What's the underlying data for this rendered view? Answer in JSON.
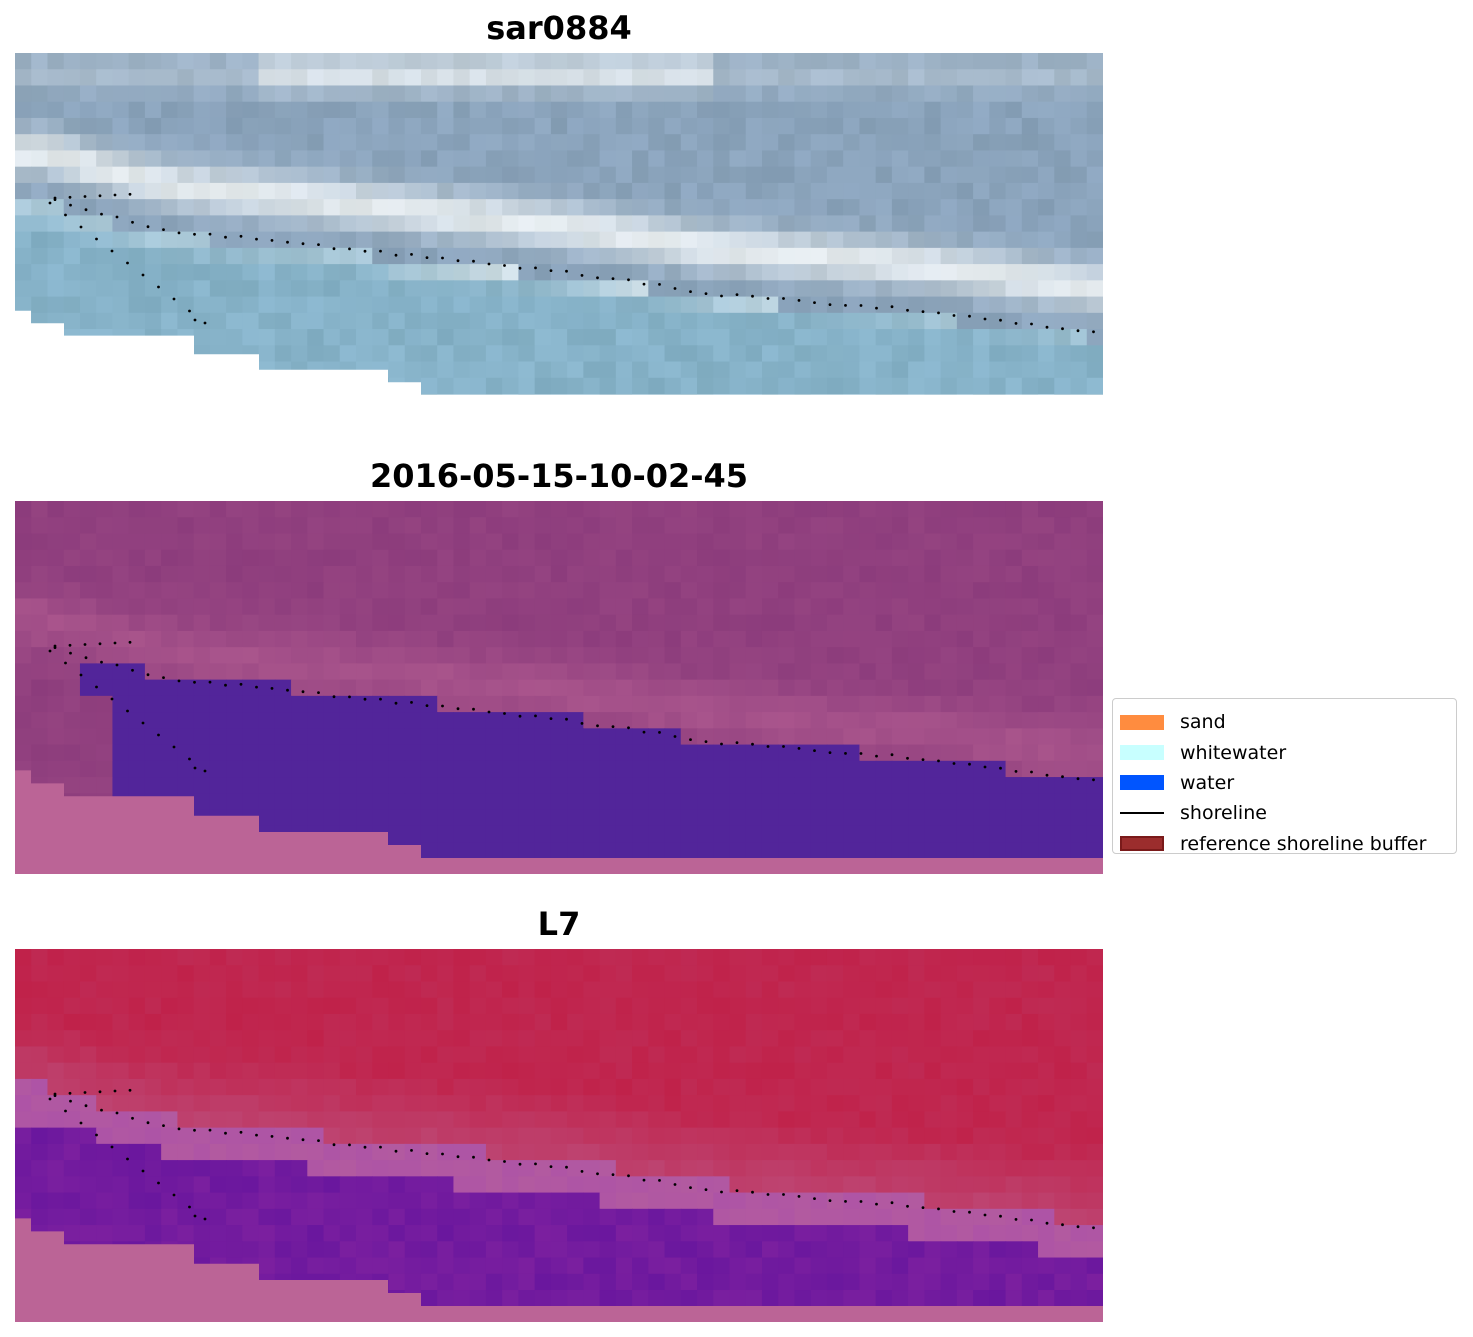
{
  "panels": [
    {
      "title": "sar0884",
      "style": "rgb"
    },
    {
      "title": "2016-05-15-10-02-45",
      "style": "classified"
    },
    {
      "title": "L7",
      "style": "index"
    }
  ],
  "legend": {
    "items": [
      {
        "label": "sand",
        "kind": "patch",
        "color": "#ff8c3f"
      },
      {
        "label": "whitewater",
        "kind": "patch",
        "color": "#c8ffff"
      },
      {
        "label": "water",
        "kind": "patch",
        "color": "#0055ff"
      },
      {
        "label": "shoreline",
        "kind": "line",
        "color": "#000000"
      },
      {
        "label": "reference shoreline buffer",
        "kind": "patch",
        "color": "#9b2d2d",
        "edge": "#7a1a1a"
      }
    ]
  },
  "colors": {
    "sar_sky": "#8aa3bb",
    "sar_white": "#eef2f3",
    "sar_water": "#86b2c8",
    "classified_land": "#8c3c7c",
    "classified_water": "#52259a",
    "nodata": "#bb6496",
    "index_red": "#c0224a",
    "index_purple": "#6a179e"
  }
}
